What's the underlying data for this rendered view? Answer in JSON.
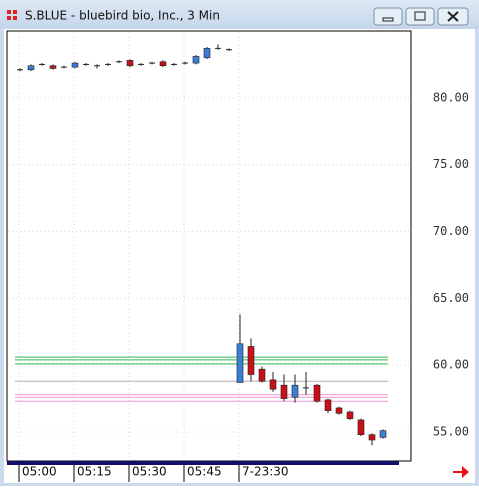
{
  "window_title": "S.BLUE - bluebird bio, Inc., 3 Min",
  "chart_data": {
    "type": "candlestick",
    "open": [
      82.1,
      82.1,
      82.5,
      82.4,
      82.3,
      82.3,
      82.5,
      82.4,
      82.5,
      82.7,
      82.8,
      82.5,
      82.6,
      82.7,
      82.5,
      82.6,
      82.6,
      83.0,
      83.7,
      83.6,
      58.7,
      61.4,
      59.7,
      58.9,
      58.5,
      57.6,
      58.3,
      58.5,
      57.4,
      56.8,
      56.5,
      55.9,
      54.8,
      54.6
    ],
    "high": [
      82.2,
      82.5,
      82.6,
      82.5,
      82.4,
      82.7,
      82.6,
      82.5,
      82.6,
      82.8,
      82.9,
      82.6,
      82.7,
      82.8,
      82.6,
      82.7,
      83.2,
      83.8,
      84.0,
      83.7,
      63.8,
      62.0,
      59.9,
      59.5,
      59.3,
      59.3,
      59.5,
      58.6,
      57.5,
      56.9,
      56.6,
      56.0,
      54.9,
      55.2
    ],
    "low": [
      82.0,
      82.0,
      82.4,
      82.1,
      82.2,
      82.2,
      82.4,
      82.2,
      82.4,
      82.6,
      82.3,
      82.4,
      82.5,
      82.3,
      82.4,
      82.5,
      82.5,
      82.9,
      83.6,
      83.5,
      58.7,
      58.8,
      58.7,
      58.0,
      57.3,
      57.2,
      57.8,
      57.2,
      56.4,
      56.3,
      55.9,
      54.7,
      54.0,
      54.5
    ],
    "close": [
      82.1,
      82.4,
      82.5,
      82.2,
      82.3,
      82.6,
      82.5,
      82.4,
      82.5,
      82.7,
      82.4,
      82.5,
      82.6,
      82.4,
      82.5,
      82.6,
      83.1,
      83.7,
      83.7,
      83.6,
      61.6,
      59.3,
      58.8,
      58.2,
      57.5,
      58.5,
      58.3,
      57.3,
      56.6,
      56.4,
      56.0,
      54.8,
      54.4,
      55.1
    ],
    "up_color": "#3a7fd5",
    "down_color": "#c8101a",
    "levels": [
      {
        "value": 60.6,
        "color": "#33bb55"
      },
      {
        "value": 60.4,
        "color": "#33bb55"
      },
      {
        "value": 60.1,
        "color": "#33bb55"
      },
      {
        "value": 58.8,
        "color": "#b0b0b0"
      },
      {
        "value": 57.8,
        "color": "#ee99cc"
      },
      {
        "value": 57.6,
        "color": "#ee99cc"
      },
      {
        "value": 57.3,
        "color": "#ee99cc"
      }
    ],
    "ylim": [
      52.83,
      85.0
    ],
    "yticks": [
      {
        "value": 55,
        "label": "55.00"
      },
      {
        "value": 60,
        "label": "60.00"
      },
      {
        "value": 65,
        "label": "65.00"
      },
      {
        "value": 70,
        "label": "70.00"
      },
      {
        "value": 75,
        "label": "75.00"
      },
      {
        "value": 80,
        "label": "80.00"
      }
    ],
    "xticks": [
      {
        "value": 0,
        "label": "05:00"
      },
      {
        "value": 5,
        "label": "05:15"
      },
      {
        "value": 10,
        "label": "05:30"
      },
      {
        "value": 15,
        "label": "05:45"
      },
      {
        "value": 20,
        "label": "7-23:30"
      }
    ],
    "grid": true
  }
}
